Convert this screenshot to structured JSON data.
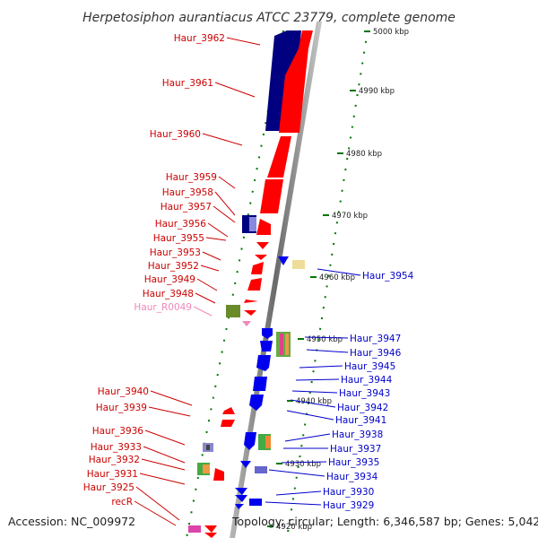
{
  "title": "Herpetosiphon aurantiacus ATCC 23779, complete genome",
  "accession": "Accession: NC_009972",
  "topology": "Topology: circular; Length: 6,346,587 bp; Genes: 5,042",
  "colors": {
    "left_label": "#cc0000",
    "right_label": "#0000cc",
    "rna_label": "#ee88bb",
    "red_gene": "#ff0000",
    "blue_gene": "#0000ee",
    "dark_blue": "#000080",
    "dot": "#008800"
  },
  "ticks": [
    {
      "text": "5000 kbp"
    },
    {
      "text": "4990 kbp"
    },
    {
      "text": "4980 kbp"
    },
    {
      "text": "4970 kbp"
    },
    {
      "text": "4960 kbp"
    },
    {
      "text": "4950 kbp"
    },
    {
      "text": "4940 kbp"
    },
    {
      "text": "4930 kbp"
    },
    {
      "text": "4920 kbp"
    }
  ],
  "left_labels": [
    {
      "text": "Haur_3962"
    },
    {
      "text": "Haur_3961"
    },
    {
      "text": "Haur_3960"
    },
    {
      "text": "Haur_3959"
    },
    {
      "text": "Haur_3958"
    },
    {
      "text": "Haur_3957"
    },
    {
      "text": "Haur_3956"
    },
    {
      "text": "Haur_3955"
    },
    {
      "text": "Haur_3953"
    },
    {
      "text": "Haur_3952"
    },
    {
      "text": "Haur_3949"
    },
    {
      "text": "Haur_3948"
    },
    {
      "text": "Haur_R0049"
    },
    {
      "text": "Haur_3940"
    },
    {
      "text": "Haur_3939"
    },
    {
      "text": "Haur_3936"
    },
    {
      "text": "Haur_3933"
    },
    {
      "text": "Haur_3932"
    },
    {
      "text": "Haur_3931"
    },
    {
      "text": "Haur_3925"
    },
    {
      "text": "recR"
    }
  ],
  "right_labels": [
    {
      "text": "Haur_3954"
    },
    {
      "text": "Haur_3947"
    },
    {
      "text": "Haur_3946"
    },
    {
      "text": "Haur_3945"
    },
    {
      "text": "Haur_3944"
    },
    {
      "text": "Haur_3943"
    },
    {
      "text": "Haur_3942"
    },
    {
      "text": "Haur_3941"
    },
    {
      "text": "Haur_3938"
    },
    {
      "text": "Haur_3937"
    },
    {
      "text": "Haur_3935"
    },
    {
      "text": "Haur_3934"
    },
    {
      "text": "Haur_3930"
    },
    {
      "text": "Haur_3929"
    }
  ]
}
